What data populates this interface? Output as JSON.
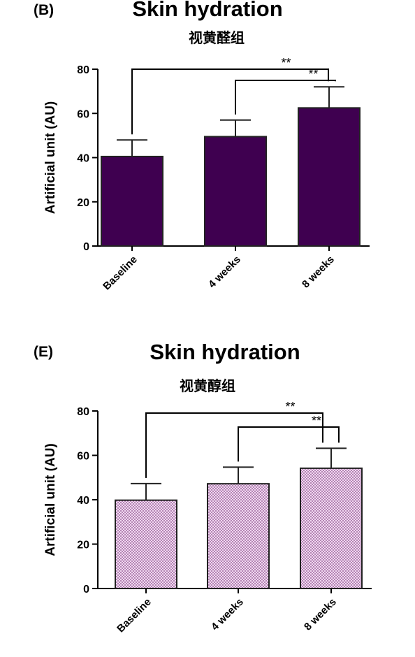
{
  "chart_data": [
    {
      "panel_label": "(B)",
      "type": "bar",
      "title": "Skin hydration",
      "subtitle": "视黄醛组",
      "ylabel": "Artificial unit (AU)",
      "xlabel": "",
      "categories": [
        "Baseline",
        "4 weeks",
        "8 weeks"
      ],
      "values": [
        40.5,
        49.5,
        62.5
      ],
      "errors": [
        7.5,
        7.5,
        9.5
      ],
      "ylim": [
        0,
        80
      ],
      "yticks": [
        "0",
        "20",
        "40",
        "60",
        "80"
      ],
      "bar_color": "#3f0050",
      "bar_fill": "solid",
      "grid": false,
      "significance": [
        {
          "from": "Baseline",
          "to": "8 weeks",
          "label": "**"
        },
        {
          "from": "4 weeks",
          "to": "8 weeks",
          "label": "**"
        }
      ]
    },
    {
      "panel_label": "(E)",
      "type": "bar",
      "title": "Skin hydration",
      "subtitle": "视黄醇组",
      "ylabel": "Artificial unit (AU)",
      "xlabel": "",
      "categories": [
        "Baseline",
        "4 weeks",
        "8 weeks"
      ],
      "values": [
        39.8,
        47.2,
        54.2
      ],
      "errors": [
        7.5,
        7.5,
        9.0
      ],
      "ylim": [
        0,
        80
      ],
      "yticks": [
        "0",
        "20",
        "40",
        "60",
        "80"
      ],
      "bar_color": "#e6c8e6",
      "bar_fill": "dotted",
      "grid": false,
      "significance": [
        {
          "from": "Baseline",
          "to": "8 weeks",
          "label": "**"
        },
        {
          "from": "4 weeks",
          "to": "8 weeks",
          "label": "**"
        }
      ]
    }
  ]
}
